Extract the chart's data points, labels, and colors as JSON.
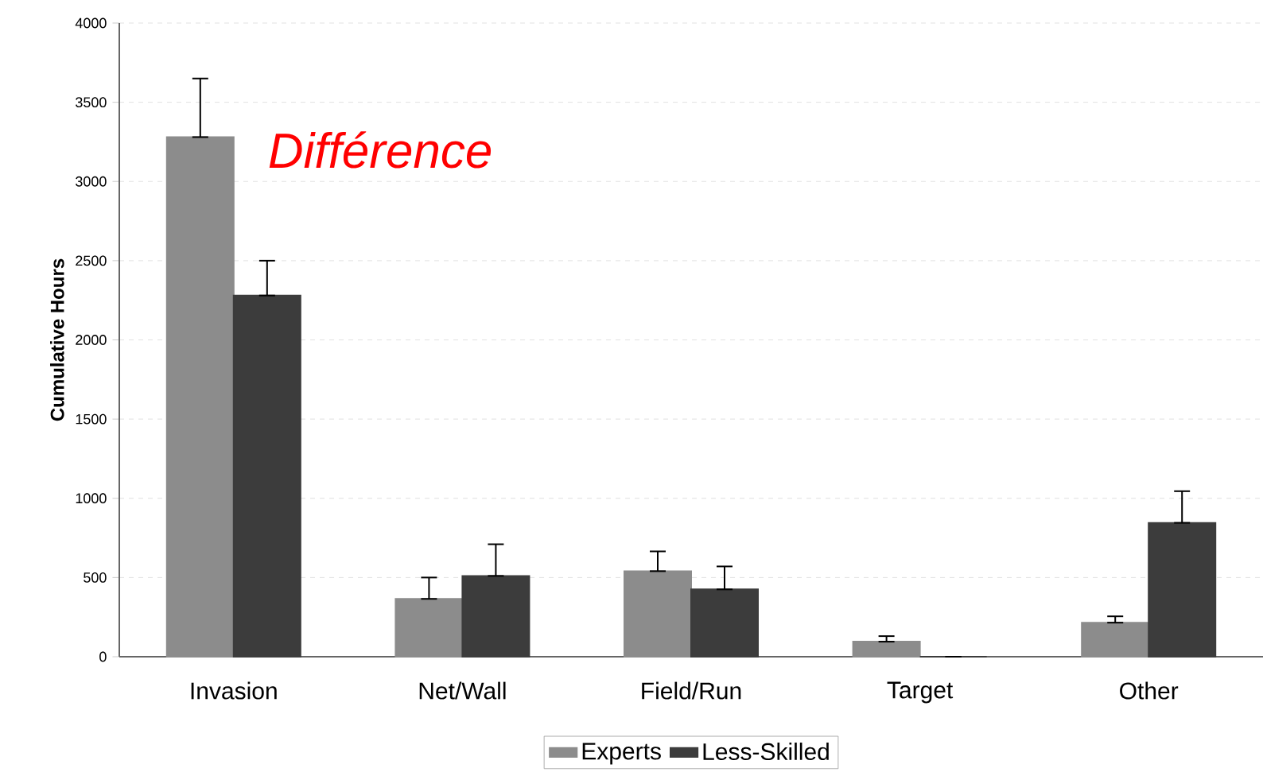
{
  "chart_data": {
    "type": "bar",
    "ylabel": "Cumulative Hours",
    "categories": [
      "Invasion",
      "Net/Wall",
      "Field/Run",
      "Target",
      "Other"
    ],
    "series": [
      {
        "name": "Experts",
        "color": "#8c8c8c",
        "values": [
          3280,
          365,
          540,
          95,
          215
        ],
        "errors": [
          [
            3280,
            3650
          ],
          [
            365,
            500
          ],
          [
            540,
            665
          ],
          [
            95,
            130
          ],
          [
            215,
            255
          ]
        ]
      },
      {
        "name": "Less-Skilled",
        "color": "#3c3c3c",
        "values": [
          2280,
          510,
          425,
          0,
          845
        ],
        "errors": [
          [
            2280,
            2500
          ],
          [
            510,
            710
          ],
          [
            425,
            570
          ],
          null,
          [
            845,
            1045
          ]
        ]
      }
    ],
    "ylim": [
      0,
      4000
    ],
    "yticks": [
      0,
      500,
      1000,
      1500,
      2000,
      2500,
      3000,
      3500,
      4000
    ],
    "grid": "y",
    "legend": "bottom",
    "annotations": [
      "Différence"
    ]
  }
}
